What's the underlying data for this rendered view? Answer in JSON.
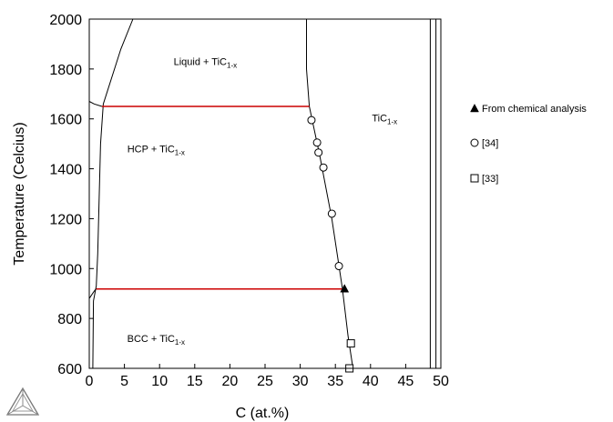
{
  "chart_data": {
    "type": "scatter",
    "xlabel": "C (at.%)",
    "ylabel": "Temperature (Celcius)",
    "xlim": [
      0,
      50
    ],
    "ylim": [
      600,
      2000
    ],
    "xticks": [
      0,
      5,
      10,
      15,
      20,
      25,
      30,
      35,
      40,
      45,
      50
    ],
    "yticks": [
      600,
      800,
      1000,
      1200,
      1400,
      1600,
      1800,
      2000
    ],
    "grid": false,
    "legend_position": "right",
    "region_labels": [
      {
        "base": "Liquid + TiC",
        "sub": "1-x",
        "x": 16.5,
        "y": 1815
      },
      {
        "base": "HCP + TiC",
        "sub": "1-x",
        "x": 9.5,
        "y": 1465
      },
      {
        "base": "BCC + TiC",
        "sub": "1-x",
        "x": 9.5,
        "y": 705
      },
      {
        "base": "TiC",
        "sub": "1-x",
        "x": 42,
        "y": 1590
      }
    ],
    "phase_boundaries": [
      {
        "color": "#000000",
        "points": [
          [
            0.5,
            600
          ],
          [
            0.6,
            870
          ],
          [
            1.0,
            930
          ],
          [
            1.2,
            1060
          ],
          [
            1.6,
            1500
          ],
          [
            2.0,
            1660
          ],
          [
            4.5,
            1880
          ],
          [
            6.2,
            2000
          ]
        ]
      },
      {
        "color": "#000000",
        "points": [
          [
            0.0,
            1670
          ],
          [
            0.7,
            1660
          ],
          [
            1.8,
            1650
          ]
        ]
      },
      {
        "color": "#000000",
        "points": [
          [
            0.0,
            880
          ],
          [
            0.6,
            905
          ],
          [
            1.0,
            920
          ]
        ]
      },
      {
        "color": "#000000",
        "points": [
          [
            31.3,
            1650
          ],
          [
            30.9,
            1800
          ],
          [
            30.9,
            2000
          ]
        ]
      },
      {
        "color": "#000000",
        "points": [
          [
            31.3,
            1650
          ],
          [
            32.8,
            1450
          ],
          [
            34.5,
            1200
          ],
          [
            36.0,
            920
          ],
          [
            36.8,
            730
          ],
          [
            37.5,
            600
          ]
        ]
      },
      {
        "color": "#000000",
        "points": [
          [
            48.5,
            600
          ],
          [
            48.5,
            2000
          ]
        ]
      },
      {
        "color": "#000000",
        "points": [
          [
            49.3,
            600
          ],
          [
            49.3,
            2000
          ]
        ]
      },
      {
        "color": "#cc0000",
        "points": [
          [
            1.8,
            1650
          ],
          [
            31.3,
            1650
          ]
        ]
      },
      {
        "color": "#cc0000",
        "points": [
          [
            1.0,
            918
          ],
          [
            36.0,
            918
          ]
        ]
      }
    ],
    "series": [
      {
        "name": "From chemical analysis",
        "marker": "triangle",
        "points": [
          [
            36.3,
            920
          ]
        ]
      },
      {
        "name": "[34]",
        "marker": "circle",
        "points": [
          [
            31.6,
            1595
          ],
          [
            32.4,
            1505
          ],
          [
            32.6,
            1465
          ],
          [
            33.3,
            1405
          ],
          [
            34.5,
            1220
          ],
          [
            35.5,
            1010
          ]
        ]
      },
      {
        "name": "[33]",
        "marker": "square",
        "points": [
          [
            37.2,
            700
          ],
          [
            37.0,
            600
          ]
        ]
      }
    ]
  }
}
